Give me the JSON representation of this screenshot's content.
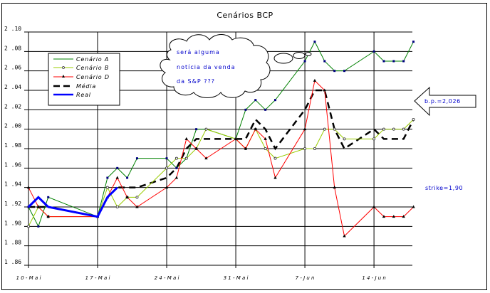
{
  "chart_data": {
    "type": "line",
    "title": "Cenários BCP",
    "xlabel": "",
    "ylabel": "",
    "ylim": [
      1.86,
      2.1
    ],
    "yticks": [
      "2.10",
      "2.08",
      "2.06",
      "2.04",
      "2.02",
      "2.00",
      "1.98",
      "1.96",
      "1.94",
      "1.92",
      "1.90",
      "1.88",
      "1.86"
    ],
    "xtick_labels": [
      "10-Mai",
      "17-Mai",
      "24-Mai",
      "31-Mai",
      "7-Jun",
      "14-Jun"
    ],
    "grid": true,
    "legend_position": "upper-left",
    "x": [
      "10-Mai",
      "11-Mai",
      "12-Mai",
      "17-Mai",
      "18-Mai",
      "19-Mai",
      "20-Mai",
      "21-Mai",
      "24-Mai",
      "25-Mai",
      "26-Mai",
      "27-Mai",
      "28-Mai",
      "31-Mai",
      "1-Jun",
      "2-Jun",
      "3-Jun",
      "4-Jun",
      "7-Jun",
      "8-Jun",
      "9-Jun",
      "10-Jun",
      "11-Jun",
      "14-Jun",
      "15-Jun",
      "16-Jun",
      "17-Jun",
      "18-Jun"
    ],
    "x_day_offsets": [
      0,
      1,
      2,
      7,
      8,
      9,
      10,
      11,
      14,
      15,
      16,
      17,
      18,
      21,
      22,
      23,
      24,
      25,
      28,
      29,
      30,
      31,
      32,
      35,
      36,
      37,
      38,
      39
    ],
    "series": [
      {
        "name": "Cenário A",
        "color": "#008000",
        "marker": "plus",
        "values": [
          1.92,
          1.9,
          1.93,
          1.91,
          1.95,
          1.96,
          1.95,
          1.97,
          1.97,
          1.96,
          1.97,
          2.0,
          2.0,
          1.99,
          2.02,
          2.03,
          2.02,
          2.03,
          2.07,
          2.09,
          2.07,
          2.06,
          2.06,
          2.08,
          2.07,
          2.07,
          2.07,
          2.09
        ]
      },
      {
        "name": "Cenário B",
        "color": "#99cc00",
        "marker": "circle",
        "values": [
          1.9,
          1.92,
          1.91,
          1.91,
          1.94,
          1.92,
          1.93,
          1.93,
          1.96,
          1.97,
          1.97,
          1.98,
          2.0,
          1.99,
          1.98,
          2.0,
          1.98,
          1.97,
          1.98,
          1.98,
          2.0,
          2.0,
          1.99,
          1.99,
          2.0,
          2.0,
          2.0,
          2.01
        ]
      },
      {
        "name": "Cenário D",
        "color": "#ff0000",
        "marker": "triangle",
        "values": [
          1.94,
          1.92,
          1.91,
          1.91,
          1.93,
          1.95,
          1.93,
          1.92,
          1.94,
          1.95,
          1.99,
          1.98,
          1.97,
          1.99,
          1.98,
          2.0,
          1.99,
          1.95,
          2.0,
          2.05,
          2.04,
          1.94,
          1.89,
          1.92,
          1.91,
          1.91,
          1.91,
          1.92
        ]
      },
      {
        "name": "Média",
        "color": "#000000",
        "style": "dashed",
        "values": [
          1.92,
          1.92,
          1.92,
          1.91,
          1.93,
          1.94,
          1.94,
          1.94,
          1.95,
          1.96,
          1.98,
          1.99,
          1.99,
          1.99,
          1.99,
          2.01,
          2.0,
          1.98,
          2.02,
          2.04,
          2.04,
          2.0,
          1.98,
          2.0,
          1.99,
          1.99,
          1.99,
          2.01
        ]
      },
      {
        "name": "Real",
        "color": "#0000ff",
        "style": "thick",
        "values": [
          1.92,
          1.93,
          1.92,
          1.91,
          1.93,
          1.94,
          null,
          null,
          null,
          null,
          null,
          null,
          null,
          null,
          null,
          null,
          null,
          null,
          null,
          null,
          null,
          null,
          null,
          null,
          null,
          null,
          null,
          null
        ]
      }
    ],
    "annotations": [
      {
        "type": "thought-bubble",
        "lines": [
          "será alguma",
          "notícia da venda",
          "da S&P ???"
        ]
      },
      {
        "type": "arrow-callout",
        "text": "b.p.=2,026"
      },
      {
        "type": "text",
        "text": "strike=1,90"
      }
    ]
  },
  "chart": {
    "title": "Cenários BCP",
    "legend": [
      "Cenário A",
      "Cenário B",
      "Cenário D",
      "Média",
      "Real"
    ],
    "bubble": [
      "será alguma",
      "notícia da venda",
      "da S&P ???"
    ],
    "bp_label": "b.p.=2,026",
    "strike_label": "strike=1,90"
  }
}
